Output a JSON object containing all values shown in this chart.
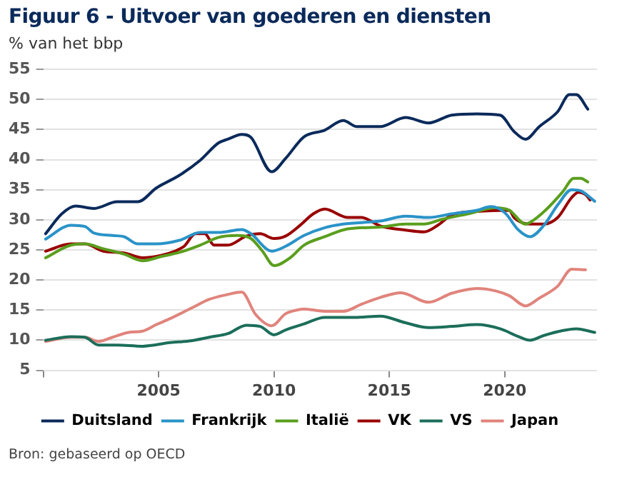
{
  "chart_data": {
    "type": "line",
    "title": "Figuur 6 - Uitvoer van goederen en diensten",
    "subtitle": "% van het bbp",
    "annotations": [
      "Bron: gebaseerd op OECD"
    ],
    "xlim": [
      2000,
      2024
    ],
    "xticks": [
      {
        "value": 2000,
        "label": null
      },
      2005,
      2010,
      2015,
      2020
    ],
    "ylim": [
      5,
      55
    ],
    "yticks": [
      5,
      10,
      15,
      20,
      25,
      30,
      35,
      40,
      45,
      50,
      55
    ],
    "grid": "y",
    "legend": "bottom",
    "marker": "none",
    "line_style": "solid",
    "series": [
      {
        "name": "Duitsland",
        "color": "#0b2a5b",
        "x": [
          2000.1,
          2000.8,
          2001.4,
          2002.2,
          2003.2,
          2004.1,
          2004.9,
          2005.9,
          2006.8,
          2007.6,
          2008.0,
          2008.6,
          2009.0,
          2009.9,
          2010.5,
          2011.3,
          2012.2,
          2013.0,
          2013.6,
          2014.6,
          2015.7,
          2016.7,
          2017.7,
          2018.8,
          2019.8,
          2020.4,
          2020.9,
          2021.5,
          2022.3,
          2022.8,
          2023.1,
          2023.6
        ],
        "values": [
          27.7,
          31,
          32.3,
          31.9,
          33,
          33,
          35.3,
          37.4,
          39.9,
          42.8,
          43.4,
          44.2,
          43.7,
          38,
          40.2,
          43.8,
          44.9,
          46.5,
          45.5,
          45.5,
          47,
          46.1,
          47.4,
          47.6,
          47.4,
          44.7,
          43.4,
          45.5,
          48,
          50.8,
          50.8,
          48.4
        ]
      },
      {
        "name": "Frankrijk",
        "color": "#2a93c8",
        "x": [
          2000.1,
          2001.2,
          2001.8,
          2002.2,
          2003.0,
          2003.5,
          2004.1,
          2004.9,
          2005.9,
          2006.8,
          2007.6,
          2008.6,
          2009.0,
          2009.9,
          2010.5,
          2011.3,
          2012.2,
          2013.0,
          2014.6,
          2015.7,
          2016.7,
          2017.7,
          2018.8,
          2019.4,
          2020.0,
          2020.6,
          2021.1,
          2021.7,
          2022.3,
          2022.9,
          2023.3,
          2023.9
        ],
        "values": [
          26.8,
          29.1,
          28.9,
          27.8,
          27.4,
          27.2,
          26,
          26,
          26.6,
          27.9,
          27.9,
          28.4,
          27.7,
          24.8,
          25.6,
          27.4,
          28.7,
          29.3,
          29.8,
          30.6,
          30.4,
          31,
          31.6,
          32.2,
          31.2,
          28.3,
          27.2,
          29.1,
          32.5,
          35,
          34.8,
          33.1
        ]
      },
      {
        "name": "Italië",
        "color": "#5a9e1e",
        "x": [
          2000.1,
          2001.2,
          2001.8,
          2002.6,
          2003.5,
          2004.3,
          2005.1,
          2005.9,
          2006.8,
          2007.6,
          2008.4,
          2009.0,
          2009.5,
          2010.0,
          2010.7,
          2011.3,
          2012.2,
          2013.2,
          2014.6,
          2015.7,
          2016.5,
          2017.3,
          2018.4,
          2019.6,
          2020.2,
          2020.9,
          2021.3,
          2021.9,
          2022.5,
          2023.0,
          2023.3,
          2023.6
        ],
        "values": [
          23.7,
          25.8,
          26,
          25.2,
          24.3,
          23.2,
          23.9,
          24.6,
          25.8,
          27.1,
          27.4,
          26.9,
          24.8,
          22.4,
          23.7,
          25.8,
          27.2,
          28.5,
          28.8,
          29.3,
          29.3,
          30.1,
          31,
          32,
          31.6,
          29.3,
          30.1,
          32.1,
          34.6,
          36.9,
          36.9,
          36.3
        ]
      },
      {
        "name": "VK",
        "color": "#990000",
        "x": [
          2000.1,
          2001.2,
          2001.8,
          2002.6,
          2003.5,
          2004.3,
          2005.1,
          2005.7,
          2006.1,
          2006.6,
          2007.0,
          2007.4,
          2008.0,
          2008.8,
          2009.4,
          2010.0,
          2010.5,
          2011.1,
          2011.7,
          2012.2,
          2013.2,
          2013.8,
          2014.6,
          2015.7,
          2016.5,
          2017.1,
          2017.7,
          2018.8,
          2020.2,
          2020.4,
          2021.1,
          2021.7,
          2022.3,
          2022.9,
          2023.2,
          2023.5,
          2023.7
        ],
        "values": [
          24.8,
          26,
          26,
          24.8,
          24.5,
          23.7,
          24.1,
          24.8,
          25.6,
          27.7,
          27.7,
          25.8,
          25.8,
          27.3,
          27.7,
          26.9,
          27.3,
          29,
          31,
          31.8,
          30.4,
          30.4,
          29,
          28.3,
          28,
          29.1,
          30.8,
          31.4,
          31.6,
          30.4,
          29.3,
          29.3,
          30.4,
          33.7,
          34.6,
          34.2,
          33.3
        ]
      },
      {
        "name": "VS",
        "color": "#1b6e5a",
        "x": [
          2000.1,
          2001.2,
          2001.8,
          2002.4,
          2003.2,
          2004.3,
          2005.5,
          2006.4,
          2007.2,
          2008.0,
          2008.8,
          2009.4,
          2010.0,
          2010.5,
          2011.3,
          2012.2,
          2013.6,
          2014.6,
          2015.7,
          2016.7,
          2017.7,
          2018.8,
          2019.8,
          2020.6,
          2021.1,
          2021.7,
          2022.5,
          2023.1,
          2023.9
        ],
        "values": [
          10,
          10.6,
          10.5,
          9.2,
          9.2,
          9,
          9.6,
          9.9,
          10.5,
          11.1,
          12.5,
          12.3,
          10.9,
          11.7,
          12.7,
          13.8,
          13.8,
          14,
          12.9,
          12.1,
          12.3,
          12.6,
          11.9,
          10.6,
          10,
          10.8,
          11.6,
          11.9,
          11.3
        ]
      },
      {
        "name": "Japan",
        "color": "#e0847c",
        "x": [
          2000.1,
          2001.2,
          2001.8,
          2002.4,
          2003.0,
          2003.7,
          2004.3,
          2004.9,
          2005.5,
          2006.4,
          2007.2,
          2008.0,
          2008.6,
          2009.2,
          2009.9,
          2010.5,
          2011.1,
          2011.3,
          2012.2,
          2013.0,
          2013.8,
          2014.6,
          2015.5,
          2016.7,
          2017.7,
          2018.8,
          2019.6,
          2020.2,
          2020.9,
          2021.5,
          2022.3,
          2022.9,
          2023.5
        ],
        "values": [
          9.8,
          10.5,
          10.5,
          9.8,
          10.5,
          11.3,
          11.5,
          12.6,
          13.6,
          15.3,
          16.8,
          17.6,
          18,
          14.3,
          12.4,
          14.4,
          15.1,
          15.2,
          14.8,
          14.8,
          16,
          17.1,
          17.9,
          16.3,
          17.8,
          18.6,
          18.2,
          17.4,
          15.7,
          17,
          19,
          21.8,
          21.7
        ]
      }
    ]
  }
}
